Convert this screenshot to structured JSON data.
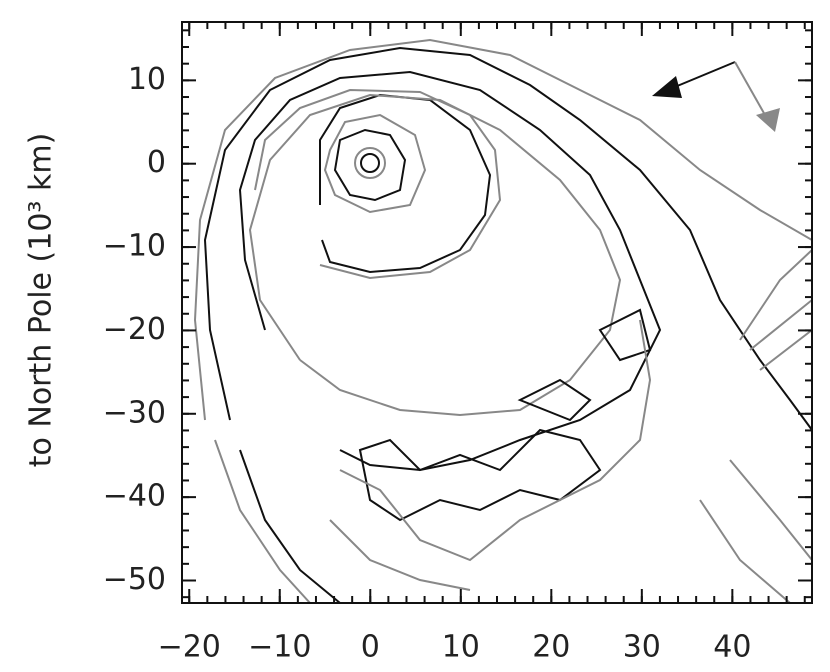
{
  "chart_data": {
    "type": "contour",
    "ylabel": "to North Pole (10³ km)",
    "xlim": [
      -20.8,
      48.8
    ],
    "ylim": [
      -52.7,
      17
    ],
    "xticks": [
      {
        "value": -20,
        "label": "−20"
      },
      {
        "value": -10,
        "label": "−10"
      },
      0,
      10,
      20,
      30,
      40
    ],
    "yticks": [
      10,
      0,
      {
        "value": -10,
        "label": "−10"
      },
      {
        "value": -20,
        "label": "−20"
      },
      {
        "value": -30,
        "label": "−30"
      },
      {
        "value": -40,
        "label": "−40"
      },
      {
        "value": -50,
        "label": "−50"
      }
    ],
    "colors": [
      "#111111",
      "#888888"
    ]
  }
}
